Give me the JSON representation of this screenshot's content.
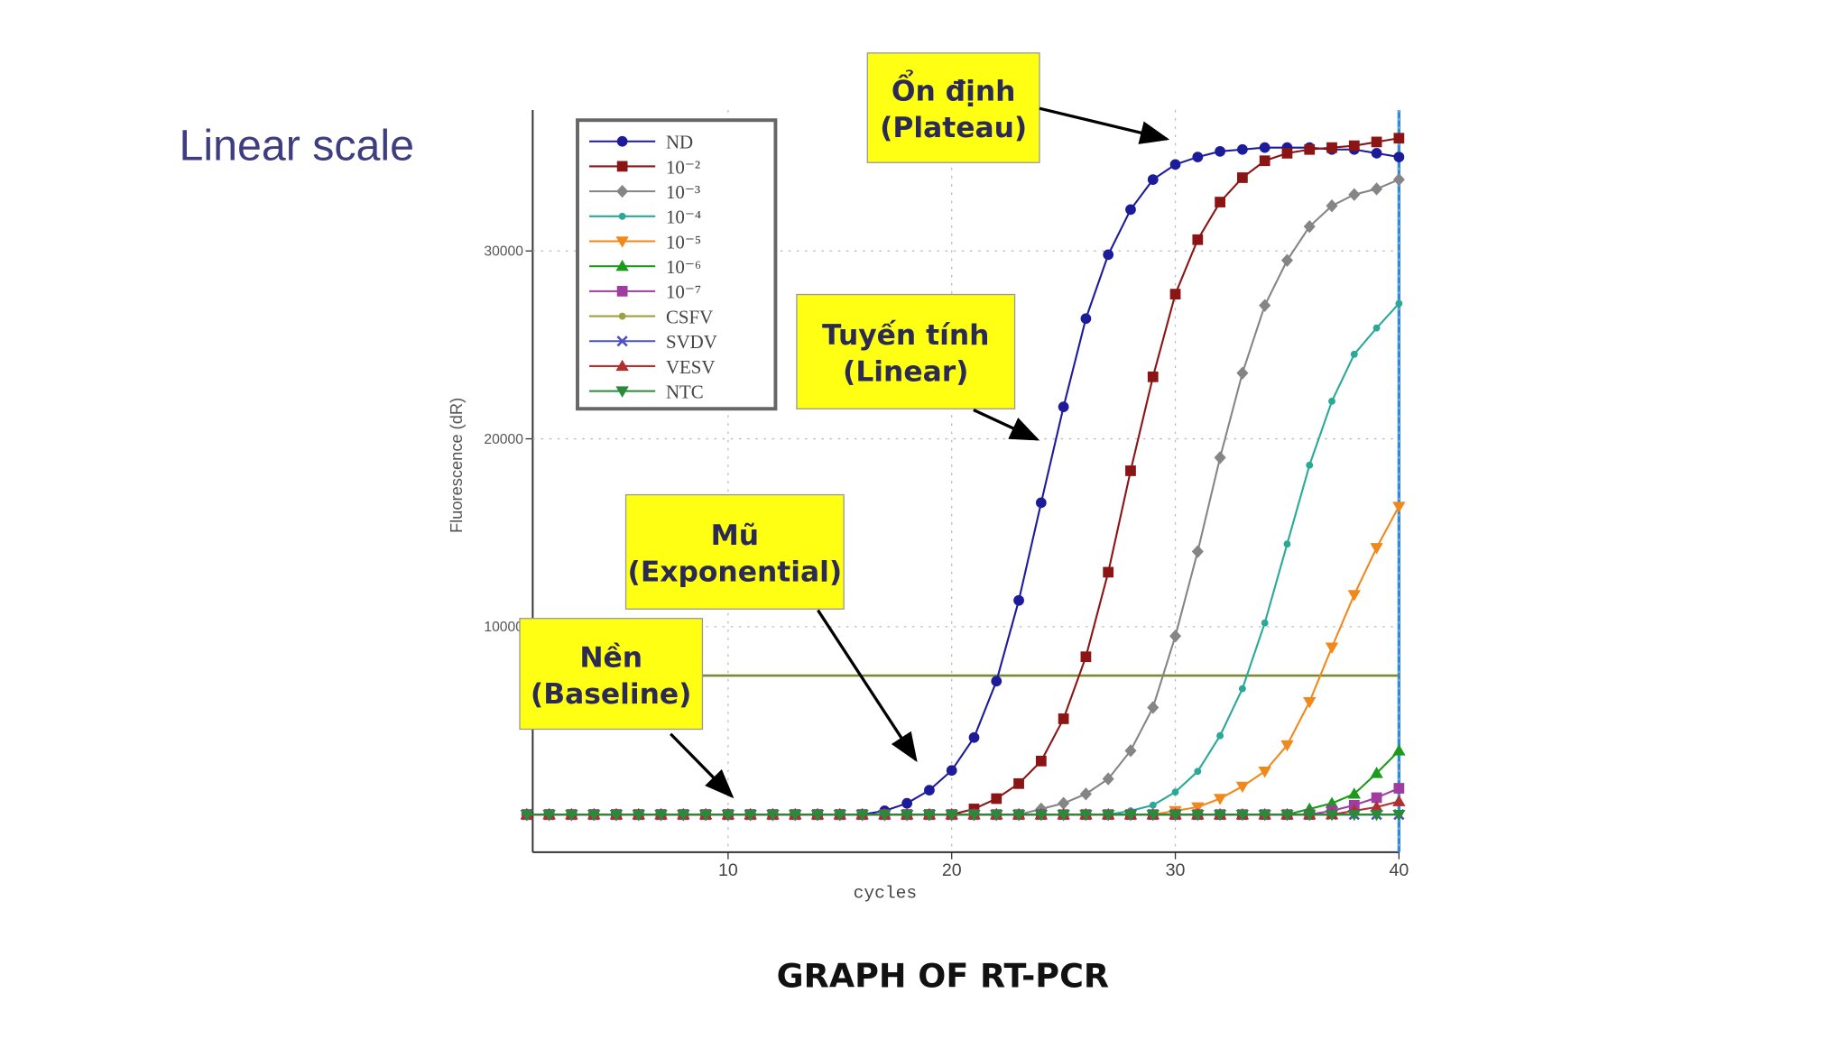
{
  "chart_data": {
    "type": "line",
    "subtitle": "Linear scale",
    "title": "GRAPH OF RT-PCR",
    "y_label": "Fluorescence (dR)",
    "x_label": "cycles",
    "x": [
      1,
      2,
      3,
      4,
      5,
      6,
      7,
      8,
      9,
      10,
      11,
      12,
      13,
      14,
      15,
      16,
      17,
      18,
      19,
      20,
      21,
      22,
      23,
      24,
      25,
      26,
      27,
      28,
      29,
      30,
      31,
      32,
      33,
      34,
      35,
      36,
      37,
      38,
      39,
      40
    ],
    "xlim": [
      1,
      40
    ],
    "xticks": [
      10,
      20,
      30,
      40
    ],
    "ylim": [
      -2000,
      37500
    ],
    "yticks": [
      10000,
      20000,
      30000
    ],
    "grid": true,
    "threshold": 7400,
    "threshold_color": "#7a8a30",
    "series": [
      {
        "name": "ND",
        "color": "#1c1c9a",
        "marker": "circle",
        "values": [
          0,
          0,
          0,
          0,
          0,
          0,
          0,
          0,
          0,
          0,
          0,
          0,
          0,
          0,
          0,
          0,
          200,
          600,
          1300,
          2350,
          4100,
          7100,
          11400,
          16600,
          21700,
          26400,
          29800,
          32200,
          33800,
          34600,
          35000,
          35300,
          35400,
          35500,
          35500,
          35500,
          35400,
          35400,
          35200,
          35000
        ]
      },
      {
        "name": "10⁻²",
        "color": "#8b1414",
        "marker": "square",
        "values": [
          0,
          0,
          0,
          0,
          0,
          0,
          0,
          0,
          0,
          0,
          0,
          0,
          0,
          0,
          0,
          0,
          0,
          0,
          0,
          0,
          300,
          850,
          1650,
          2850,
          5100,
          8400,
          12900,
          18300,
          23300,
          27700,
          30600,
          32600,
          33900,
          34800,
          35200,
          35400,
          35500,
          35600,
          35800,
          36000
        ]
      },
      {
        "name": "10⁻³",
        "color": "#858585",
        "marker": "diamond",
        "values": [
          0,
          0,
          0,
          0,
          0,
          0,
          0,
          0,
          0,
          0,
          0,
          0,
          0,
          0,
          0,
          0,
          0,
          0,
          0,
          0,
          0,
          0,
          0,
          300,
          600,
          1100,
          1900,
          3400,
          5700,
          9500,
          14000,
          19000,
          23500,
          27100,
          29500,
          31300,
          32400,
          33000,
          33300,
          33800
        ]
      },
      {
        "name": "10⁻⁴",
        "color": "#2aa898",
        "marker": "dot",
        "values": [
          0,
          0,
          0,
          0,
          0,
          0,
          0,
          0,
          0,
          0,
          0,
          0,
          0,
          0,
          0,
          0,
          0,
          0,
          0,
          0,
          0,
          0,
          0,
          0,
          0,
          0,
          0,
          200,
          500,
          1200,
          2300,
          4200,
          6700,
          10200,
          14400,
          18600,
          22000,
          24500,
          25900,
          27200
        ]
      },
      {
        "name": "10⁻⁵",
        "color": "#f0891c",
        "marker": "tri-down",
        "values": [
          0,
          0,
          0,
          0,
          0,
          0,
          0,
          0,
          0,
          0,
          0,
          0,
          0,
          0,
          0,
          0,
          0,
          0,
          0,
          0,
          0,
          0,
          0,
          0,
          0,
          0,
          0,
          0,
          0,
          200,
          400,
          850,
          1500,
          2300,
          3700,
          6000,
          8900,
          11700,
          14200,
          16400
        ]
      },
      {
        "name": "10⁻⁶",
        "color": "#1c9a1c",
        "marker": "tri-up",
        "values": [
          0,
          0,
          0,
          0,
          0,
          0,
          0,
          0,
          0,
          0,
          0,
          0,
          0,
          0,
          0,
          0,
          0,
          0,
          0,
          0,
          0,
          0,
          0,
          0,
          0,
          0,
          0,
          0,
          0,
          0,
          0,
          0,
          0,
          0,
          0,
          300,
          600,
          1100,
          2200,
          3400
        ]
      },
      {
        "name": "10⁻⁷",
        "color": "#a03ca0",
        "marker": "square",
        "values": [
          0,
          0,
          0,
          0,
          0,
          0,
          0,
          0,
          0,
          0,
          0,
          0,
          0,
          0,
          0,
          0,
          0,
          0,
          0,
          0,
          0,
          0,
          0,
          0,
          0,
          0,
          0,
          0,
          0,
          0,
          0,
          0,
          0,
          0,
          0,
          0,
          200,
          500,
          900,
          1400
        ]
      },
      {
        "name": "CSFV",
        "color": "#a0a040",
        "marker": "dot",
        "values": [
          0,
          0,
          0,
          0,
          0,
          0,
          0,
          0,
          0,
          0,
          0,
          0,
          0,
          0,
          0,
          0,
          0,
          0,
          0,
          0,
          0,
          0,
          0,
          0,
          0,
          0,
          0,
          0,
          0,
          0,
          0,
          0,
          0,
          0,
          0,
          0,
          0,
          0,
          0,
          0
        ]
      },
      {
        "name": "SVDV",
        "color": "#5050c0",
        "marker": "cross",
        "values": [
          0,
          0,
          0,
          0,
          0,
          0,
          0,
          0,
          0,
          0,
          0,
          0,
          0,
          0,
          0,
          0,
          0,
          0,
          0,
          0,
          0,
          0,
          0,
          0,
          0,
          0,
          0,
          0,
          0,
          0,
          0,
          0,
          0,
          0,
          0,
          0,
          0,
          0,
          0,
          0
        ]
      },
      {
        "name": "VESV",
        "color": "#b03030",
        "marker": "tri-up",
        "values": [
          0,
          0,
          0,
          0,
          0,
          0,
          0,
          0,
          0,
          0,
          0,
          0,
          0,
          0,
          0,
          0,
          0,
          0,
          0,
          0,
          0,
          0,
          0,
          0,
          0,
          0,
          0,
          0,
          0,
          0,
          0,
          0,
          0,
          0,
          0,
          0,
          0,
          200,
          400,
          700
        ]
      },
      {
        "name": "NTC",
        "color": "#2a8a3a",
        "marker": "tri-down",
        "values": [
          0,
          0,
          0,
          0,
          0,
          0,
          0,
          0,
          0,
          0,
          0,
          0,
          0,
          0,
          0,
          0,
          0,
          0,
          0,
          0,
          0,
          0,
          0,
          0,
          0,
          0,
          0,
          0,
          0,
          0,
          0,
          0,
          0,
          0,
          0,
          0,
          0,
          0,
          0,
          0
        ]
      }
    ],
    "annotations": [
      {
        "lines": [
          "Ổn định",
          "(Plateau)"
        ]
      },
      {
        "lines": [
          "Tuyến tính",
          "(Linear)"
        ]
      },
      {
        "lines": [
          "Mũ",
          "(Exponential)"
        ]
      },
      {
        "lines": [
          "Nền",
          "(Baseline)"
        ]
      }
    ]
  }
}
